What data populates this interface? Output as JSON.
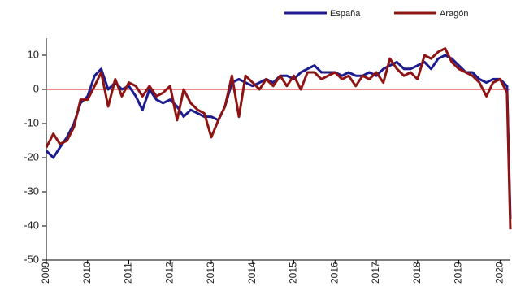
{
  "chart_data": {
    "type": "line",
    "x": [
      2009,
      2009.17,
      2009.33,
      2009.5,
      2009.67,
      2009.83,
      2010,
      2010.17,
      2010.33,
      2010.5,
      2010.67,
      2010.83,
      2011,
      2011.17,
      2011.33,
      2011.5,
      2011.67,
      2011.83,
      2012,
      2012.17,
      2012.33,
      2012.5,
      2012.67,
      2012.83,
      2013,
      2013.17,
      2013.33,
      2013.5,
      2013.67,
      2013.83,
      2014,
      2014.17,
      2014.33,
      2014.5,
      2014.67,
      2014.83,
      2015,
      2015.17,
      2015.33,
      2015.5,
      2015.67,
      2015.83,
      2016,
      2016.17,
      2016.33,
      2016.5,
      2016.67,
      2016.83,
      2017,
      2017.17,
      2017.33,
      2017.5,
      2017.67,
      2017.83,
      2018,
      2018.17,
      2018.33,
      2018.5,
      2018.67,
      2018.83,
      2019,
      2019.17,
      2019.33,
      2019.5,
      2019.67,
      2019.83,
      2020,
      2020.17,
      2020.25
    ],
    "series": [
      {
        "name": "España",
        "color": "#1c1c8e",
        "values": [
          -18,
          -20,
          -17,
          -14,
          -10,
          -4,
          -2,
          4,
          6,
          0,
          2,
          0,
          1,
          -2,
          -6,
          0,
          -3,
          -4,
          -3,
          -5,
          -8,
          -6,
          -7,
          -8,
          -8,
          -9,
          -5,
          2,
          3,
          2,
          1,
          2,
          3,
          2,
          4,
          4,
          3,
          5,
          6,
          7,
          5,
          5,
          5,
          4,
          5,
          4,
          4,
          5,
          4,
          6,
          7,
          8,
          6,
          6,
          7,
          8,
          6,
          9,
          10,
          9,
          7,
          5,
          5,
          3,
          2,
          3,
          3,
          1,
          -38
        ]
      },
      {
        "name": "Aragón",
        "color": "#8e1414",
        "values": [
          -17,
          -13,
          -16,
          -15,
          -11,
          -3,
          -3,
          1,
          5,
          -5,
          3,
          -2,
          2,
          1,
          -2,
          1,
          -2,
          -1,
          1,
          -9,
          0,
          -4,
          -6,
          -7,
          -14,
          -9,
          -5,
          4,
          -8,
          4,
          2,
          0,
          3,
          1,
          4,
          1,
          4,
          0,
          5,
          5,
          3,
          4,
          5,
          3,
          4,
          1,
          4,
          3,
          5,
          2,
          9,
          6,
          4,
          5,
          3,
          10,
          9,
          11,
          12,
          8,
          6,
          5,
          4,
          2,
          -2,
          2,
          3,
          -1,
          -41
        ]
      }
    ],
    "xlim": [
      2009,
      2020.25
    ],
    "xticks": [
      2009,
      2010,
      2011,
      2012,
      2013,
      2014,
      2015,
      2016,
      2017,
      2018,
      2019,
      2020
    ],
    "ylim": [
      -50,
      15
    ],
    "yticks": [
      10,
      0,
      -10,
      -20,
      -30,
      -40,
      -50
    ],
    "hline": 0,
    "hline_color": "#e04848",
    "legend": "top-right"
  }
}
